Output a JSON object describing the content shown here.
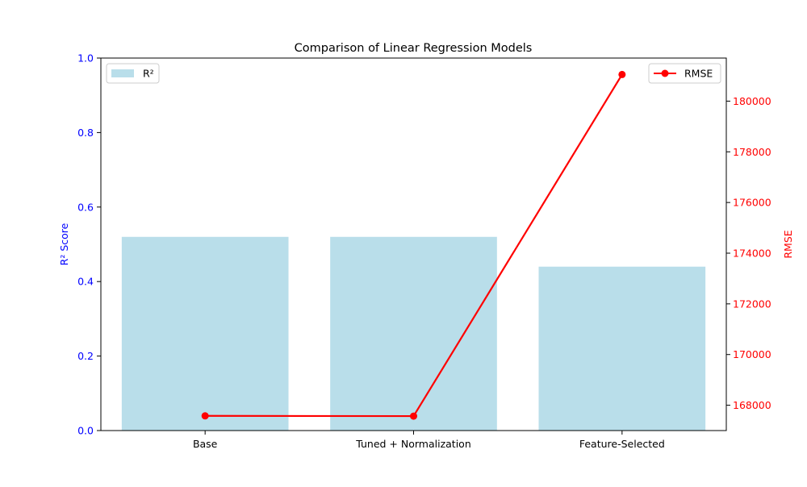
{
  "chart_data": {
    "type": "bar",
    "title": "Comparison of Linear Regression Models",
    "categories": [
      "Base",
      "Tuned + Normalization",
      "Feature-Selected"
    ],
    "left_axis": {
      "label": "R² Score",
      "range": [
        0,
        1.0
      ],
      "ticks": [
        "0.0",
        "0.2",
        "0.4",
        "0.6",
        "0.8",
        "1.0"
      ],
      "color": "#0000ff"
    },
    "right_axis": {
      "label": "RMSE",
      "range": [
        167000,
        181700
      ],
      "ticks": [
        "168000",
        "170000",
        "172000",
        "174000",
        "176000",
        "178000",
        "180000"
      ],
      "color": "#ff0000"
    },
    "series": [
      {
        "name": "R²",
        "kind": "bar",
        "axis": "left",
        "color": "#add8e6",
        "values": [
          0.52,
          0.52,
          0.44
        ]
      },
      {
        "name": "RMSE",
        "kind": "line",
        "axis": "right",
        "color": "#ff0000",
        "marker": "circle",
        "values": [
          167580,
          167570,
          181050
        ]
      }
    ],
    "legends": [
      {
        "placement": "top-left",
        "series": "R²"
      },
      {
        "placement": "top-right",
        "series": "RMSE"
      }
    ],
    "grid": false
  }
}
